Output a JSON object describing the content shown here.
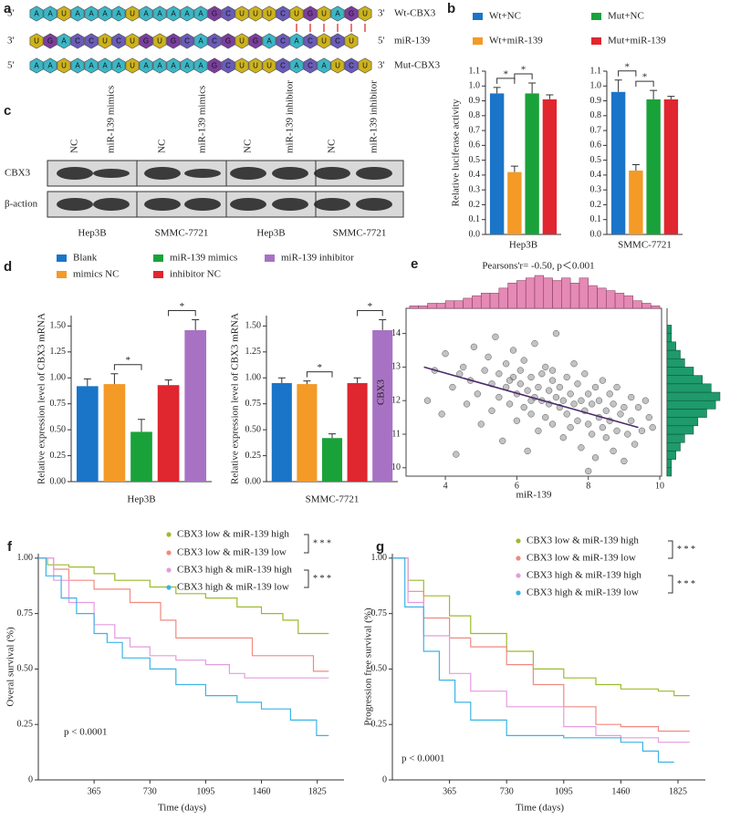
{
  "panel_a": {
    "label": "a",
    "rows": [
      {
        "five": "5'",
        "three": "3'",
        "name": "Wt-CBX3",
        "seq": [
          "A",
          "A",
          "U",
          "A",
          "A",
          "A",
          "A",
          "U",
          "A",
          "A",
          "A",
          "A",
          "A",
          "G",
          "C",
          "U",
          "U",
          "U",
          "C",
          "U",
          "G",
          "U",
          "A",
          "G",
          "U"
        ]
      },
      {
        "five": "3'",
        "three": "5'",
        "name": "miR-139",
        "seq": [
          "U",
          "G",
          "A",
          "C",
          "C",
          "U",
          "C",
          "U",
          "G",
          "U",
          "G",
          "C",
          "A",
          "C",
          "G",
          "U",
          "G",
          "A",
          "C",
          "A",
          "C",
          "U",
          "C",
          "U"
        ]
      },
      {
        "five": "5'",
        "three": "3'",
        "name": "Mut-CBX3",
        "seq": [
          "A",
          "A",
          "U",
          "A",
          "A",
          "A",
          "A",
          "U",
          "A",
          "A",
          "A",
          "A",
          "A",
          "G",
          "C",
          "U",
          "U",
          "U",
          "C",
          "A",
          "C",
          "A",
          "U",
          "C",
          "U"
        ]
      }
    ]
  },
  "panel_c": {
    "label": "c",
    "lanes": [
      "NC",
      "miR-139 mimics",
      "NC",
      "miR-139 mimics",
      "NC",
      "miR-139 inhibitor",
      "NC",
      "miR-139 inhibitor"
    ],
    "rows": [
      "CBX3",
      "β-action"
    ],
    "cells": [
      "Hep3B",
      "SMMC-7721",
      "Hep3B",
      "SMMC-7721"
    ]
  },
  "chart_data": [
    {
      "type": "bar",
      "label": "b",
      "ylabel": "Relative luciferase activity",
      "categories": [
        "Hep3B",
        "SMMC-7721"
      ],
      "series": [
        {
          "name": "Wt+NC",
          "color": "#1a75c9",
          "values": [
            0.95,
            0.96
          ],
          "errors": [
            0.04,
            0.08
          ]
        },
        {
          "name": "Wt+miR-139",
          "color": "#f39a27",
          "values": [
            0.42,
            0.43
          ],
          "errors": [
            0.04,
            0.04
          ]
        },
        {
          "name": "Mut+NC",
          "color": "#1aa23a",
          "values": [
            0.95,
            0.91
          ],
          "errors": [
            0.07,
            0.06
          ]
        },
        {
          "name": "Mut+miR-139",
          "color": "#e0262f",
          "values": [
            0.91,
            0.91
          ],
          "errors": [
            0.03,
            0.02
          ]
        }
      ],
      "ylim": [
        0,
        1.1
      ],
      "yticks": [
        {
          "value": 0,
          "label": "0.0"
        },
        0.1,
        0.2,
        0.3,
        0.4,
        0.5,
        0.6,
        0.7,
        0.8,
        0.9,
        {
          "value": 1,
          "label": "1.0"
        },
        1.1
      ],
      "significance_label": "*"
    },
    {
      "type": "bar",
      "label": "d",
      "ylabel": "Relative expression level of CBX3 mRNA",
      "categories": [
        "Hep3B",
        "SMMC-7721"
      ],
      "series": [
        {
          "name": "Blank",
          "color": "#1a75c9",
          "values": [
            0.92,
            0.95
          ],
          "errors": [
            0.07,
            0.05
          ]
        },
        {
          "name": "mimics NC",
          "color": "#f39a27",
          "values": [
            0.94,
            0.94
          ],
          "errors": [
            0.1,
            0.03
          ]
        },
        {
          "name": "miR-139 mimics",
          "color": "#1aa23a",
          "values": [
            0.48,
            0.42
          ],
          "errors": [
            0.12,
            0.04
          ]
        },
        {
          "name": "inhibitor NC",
          "color": "#e0262f",
          "values": [
            0.93,
            0.95
          ],
          "errors": [
            0.05,
            0.05
          ]
        },
        {
          "name": "miR-139 inhibitor",
          "color": "#a872c4",
          "values": [
            1.46,
            1.46
          ],
          "errors": [
            0.1,
            0.1
          ]
        }
      ],
      "ylim": [
        0,
        1.6
      ],
      "yticks": [
        {
          "value": 0,
          "label": "0.00"
        },
        0.25,
        {
          "value": 0.5,
          "label": "0.50"
        },
        0.75,
        {
          "value": 1,
          "label": "1.00"
        },
        1.25,
        {
          "value": 1.5,
          "label": "1.50"
        }
      ],
      "significance_label": "*"
    },
    {
      "type": "scatter",
      "label": "e",
      "title": "Pearsons'r= -0.50, p＜0.001",
      "xlabel": "miR-139",
      "ylabel": "CBX3",
      "color": "#7a7a7a",
      "x": [
        3.5,
        3.7,
        3.9,
        4.0,
        4.2,
        4.3,
        4.4,
        4.5,
        4.6,
        4.7,
        4.8,
        4.9,
        5.0,
        5.1,
        5.2,
        5.3,
        5.3,
        5.4,
        5.5,
        5.5,
        5.6,
        5.7,
        5.7,
        5.8,
        5.9,
        5.9,
        6.0,
        6.0,
        6.1,
        6.1,
        6.2,
        6.2,
        6.3,
        6.3,
        6.4,
        6.4,
        6.5,
        6.5,
        6.6,
        6.6,
        6.7,
        6.7,
        6.8,
        6.8,
        6.9,
        6.9,
        7.0,
        7.0,
        7.1,
        7.1,
        7.2,
        7.2,
        7.3,
        7.3,
        7.4,
        7.4,
        7.5,
        7.5,
        7.6,
        7.6,
        7.7,
        7.7,
        7.8,
        7.8,
        7.9,
        7.9,
        8.0,
        8.0,
        8.1,
        8.1,
        8.2,
        8.2,
        8.3,
        8.3,
        8.4,
        8.4,
        8.5,
        8.5,
        8.6,
        8.6,
        8.7,
        8.7,
        8.8,
        8.8,
        8.9,
        9.0,
        9.0,
        9.1,
        9.2,
        9.2,
        9.3,
        9.4,
        9.5,
        9.6,
        9.7,
        9.8,
        6.4,
        5.8,
        7.0,
        8.0
      ],
      "y": [
        12.0,
        12.9,
        11.6,
        13.4,
        12.4,
        10.4,
        12.8,
        13.0,
        11.9,
        12.6,
        13.6,
        12.2,
        11.3,
        12.9,
        13.3,
        12.5,
        11.7,
        13.9,
        12.1,
        12.8,
        10.8,
        13.1,
        12.4,
        11.9,
        12.7,
        13.5,
        12.2,
        11.4,
        12.9,
        12.5,
        11.8,
        13.2,
        12.3,
        10.5,
        12.7,
        11.6,
        12.1,
        13.7,
        12.4,
        11.1,
        12.8,
        12.0,
        11.5,
        13.0,
        12.3,
        11.9,
        12.6,
        11.3,
        12.1,
        14.0,
        11.8,
        12.4,
        10.9,
        12.0,
        11.6,
        12.7,
        11.2,
        12.2,
        11.9,
        13.1,
        11.4,
        12.5,
        10.6,
        12.0,
        11.7,
        12.8,
        11.3,
        12.2,
        11.0,
        11.9,
        12.4,
        10.3,
        11.5,
        12.0,
        11.2,
        12.6,
        11.7,
        10.9,
        12.2,
        11.4,
        10.5,
        11.9,
        11.1,
        12.4,
        11.6,
        10.2,
        11.8,
        11.0,
        12.1,
        11.4,
        10.7,
        11.8,
        11.1,
        12.0,
        11.5,
        11.2,
        12.0,
        12.6,
        12.9,
        9.9
      ],
      "fit": {
        "x": [
          3.4,
          9.4
        ],
        "y": [
          13.0,
          11.2
        ],
        "color": "#4b2a6b"
      },
      "xlim": [
        2.9,
        10.05
      ],
      "ylim": [
        9.75,
        14.75
      ],
      "xticks": [
        4,
        6,
        8,
        10
      ],
      "yticks": [
        10,
        11,
        12,
        13,
        14
      ],
      "x_hist": {
        "color": "#e589b5",
        "bins": [
          3,
          3.25,
          3.5,
          3.75,
          4,
          4.25,
          4.5,
          4.75,
          5,
          5.25,
          5.5,
          5.75,
          6,
          6.25,
          6.5,
          6.75,
          7,
          7.25,
          7.5,
          7.75,
          8,
          8.25,
          8.5,
          8.75,
          9,
          9.25,
          9.5,
          9.75,
          10
        ],
        "counts": [
          1,
          1,
          2,
          2,
          3,
          3,
          4,
          5,
          6,
          6,
          8,
          10,
          11,
          12,
          13,
          12,
          11,
          12,
          10,
          12,
          9,
          8,
          7,
          6,
          5,
          3,
          2,
          1
        ]
      },
      "y_hist": {
        "color": "#1e9a6c",
        "bins": [
          9.75,
          10,
          10.25,
          10.5,
          10.75,
          11,
          11.25,
          11.5,
          11.75,
          12,
          12.25,
          12.5,
          12.75,
          13,
          13.25,
          13.5,
          13.75,
          14,
          14.25
        ],
        "counts": [
          1,
          1,
          2,
          3,
          4,
          6,
          7,
          9,
          11,
          12,
          10,
          8,
          6,
          4,
          3,
          2,
          1,
          1
        ]
      }
    },
    {
      "type": "line",
      "label": "f",
      "xlabel": "Time (days)",
      "ylabel": "Overal survival (%)",
      "annotation": "p < 0.0001",
      "significance_label": "* * *",
      "xlim": [
        0,
        2000
      ],
      "ylim": [
        0,
        1.02
      ],
      "xticks": [
        365,
        730,
        1095,
        1460,
        1825
      ],
      "yticks": [
        0,
        0.25,
        {
          "value": 0.5,
          "label": "0.50"
        },
        0.75,
        {
          "value": 1,
          "label": "1.00"
        }
      ],
      "series": [
        {
          "name": "CBX3 low & miR-139 high",
          "color": "#9bbb2c",
          "x": [
            0,
            60,
            60,
            200,
            200,
            365,
            365,
            500,
            500,
            730,
            730,
            900,
            900,
            1095,
            1095,
            1300,
            1300,
            1460,
            1460,
            1600,
            1600,
            1700,
            1700,
            1900
          ],
          "values": [
            1,
            1,
            0.97,
            0.97,
            0.96,
            0.96,
            0.93,
            0.93,
            0.9,
            0.9,
            0.87,
            0.87,
            0.84,
            0.84,
            0.82,
            0.82,
            0.78,
            0.78,
            0.75,
            0.75,
            0.72,
            0.72,
            0.66,
            0.66
          ]
        },
        {
          "name": "CBX3 low & miR-139 low",
          "color": "#f08a80",
          "x": [
            0,
            100,
            100,
            200,
            200,
            365,
            365,
            600,
            600,
            800,
            800,
            900,
            900,
            1400,
            1400,
            1800,
            1800,
            1900
          ],
          "values": [
            1,
            1,
            0.95,
            0.95,
            0.9,
            0.9,
            0.86,
            0.86,
            0.8,
            0.8,
            0.72,
            0.72,
            0.64,
            0.64,
            0.56,
            0.56,
            0.49,
            0.49
          ]
        },
        {
          "name": "CBX3 high & miR-139 high",
          "color": "#e59be0",
          "x": [
            0,
            100,
            100,
            200,
            200,
            365,
            365,
            500,
            500,
            600,
            600,
            730,
            730,
            900,
            900,
            1095,
            1095,
            1250,
            1250,
            1350,
            1350,
            1900
          ],
          "values": [
            1,
            1,
            0.9,
            0.9,
            0.8,
            0.8,
            0.7,
            0.7,
            0.64,
            0.64,
            0.6,
            0.6,
            0.56,
            0.56,
            0.54,
            0.54,
            0.52,
            0.52,
            0.48,
            0.48,
            0.46,
            0.46
          ]
        },
        {
          "name": "CBX3 high & miR-139 low",
          "color": "#3bb4e6",
          "x": [
            0,
            50,
            50,
            150,
            150,
            250,
            250,
            365,
            365,
            450,
            450,
            550,
            550,
            730,
            730,
            900,
            900,
            1095,
            1095,
            1300,
            1300,
            1460,
            1460,
            1650,
            1650,
            1820,
            1820,
            1900
          ],
          "values": [
            1,
            1,
            0.92,
            0.92,
            0.82,
            0.82,
            0.75,
            0.75,
            0.66,
            0.66,
            0.62,
            0.62,
            0.55,
            0.55,
            0.5,
            0.5,
            0.43,
            0.43,
            0.38,
            0.38,
            0.35,
            0.35,
            0.32,
            0.32,
            0.27,
            0.27,
            0.2,
            0.2
          ]
        }
      ]
    },
    {
      "type": "line",
      "label": "g",
      "xlabel": "Time (days)",
      "ylabel": "Progression free survival (%)",
      "annotation": "p < 0.0001",
      "significance_label": "* * *",
      "xlim": [
        0,
        2000
      ],
      "ylim": [
        0,
        1.02
      ],
      "xticks": [
        365,
        730,
        1095,
        1460,
        1825
      ],
      "yticks": [
        0,
        0.25,
        {
          "value": 0.5,
          "label": "0.50"
        },
        0.75,
        {
          "value": 1,
          "label": "1.00"
        }
      ],
      "series": [
        {
          "name": "CBX3 low & miR-139 high",
          "color": "#9bbb2c",
          "x": [
            0,
            100,
            100,
            200,
            200,
            365,
            365,
            500,
            500,
            730,
            730,
            900,
            900,
            1095,
            1095,
            1300,
            1300,
            1460,
            1460,
            1700,
            1700,
            1800,
            1800,
            1900
          ],
          "values": [
            1,
            1,
            0.9,
            0.9,
            0.83,
            0.83,
            0.74,
            0.74,
            0.66,
            0.66,
            0.58,
            0.58,
            0.5,
            0.5,
            0.46,
            0.46,
            0.43,
            0.43,
            0.41,
            0.41,
            0.4,
            0.4,
            0.38,
            0.38
          ]
        },
        {
          "name": "CBX3 low & miR-139 low",
          "color": "#f08a80",
          "x": [
            0,
            100,
            100,
            200,
            200,
            365,
            365,
            500,
            500,
            730,
            730,
            900,
            900,
            1095,
            1095,
            1300,
            1300,
            1460,
            1460,
            1700,
            1700,
            1900
          ],
          "values": [
            1,
            1,
            0.85,
            0.85,
            0.73,
            0.73,
            0.64,
            0.64,
            0.6,
            0.6,
            0.52,
            0.52,
            0.43,
            0.43,
            0.33,
            0.33,
            0.25,
            0.25,
            0.24,
            0.24,
            0.22,
            0.22
          ]
        },
        {
          "name": "CBX3 high & miR-139 high",
          "color": "#e59be0",
          "x": [
            0,
            100,
            100,
            200,
            200,
            365,
            365,
            500,
            500,
            730,
            730,
            1095,
            1095,
            1300,
            1300,
            1460,
            1460,
            1700,
            1700,
            1900
          ],
          "values": [
            1,
            1,
            0.8,
            0.8,
            0.65,
            0.65,
            0.48,
            0.48,
            0.4,
            0.4,
            0.33,
            0.33,
            0.24,
            0.24,
            0.2,
            0.2,
            0.19,
            0.19,
            0.17,
            0.17
          ]
        },
        {
          "name": "CBX3 high & miR-139 low",
          "color": "#3bb4e6",
          "x": [
            0,
            80,
            80,
            200,
            200,
            300,
            300,
            400,
            400,
            500,
            500,
            730,
            730,
            1095,
            1095,
            1460,
            1460,
            1600,
            1600,
            1700,
            1700,
            1800
          ],
          "values": [
            1,
            1,
            0.78,
            0.78,
            0.58,
            0.58,
            0.45,
            0.45,
            0.35,
            0.35,
            0.27,
            0.27,
            0.2,
            0.2,
            0.19,
            0.19,
            0.17,
            0.17,
            0.13,
            0.13,
            0.08,
            0.08
          ]
        }
      ]
    }
  ]
}
